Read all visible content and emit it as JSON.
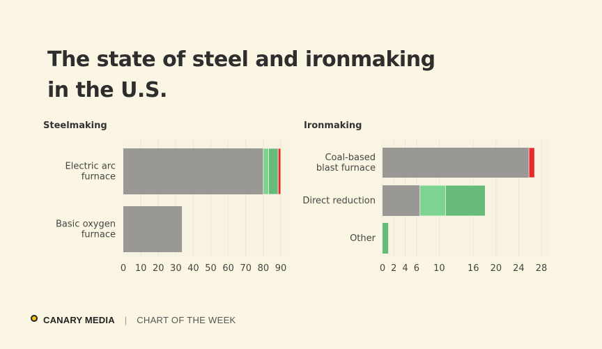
{
  "title_line1": "The state of steel and ironmaking",
  "title_line2": "in the U.S.",
  "footer": {
    "brand": "CANARY MEDIA",
    "separator": "|",
    "tagline": "CHART OF THE WEEK"
  },
  "colors": {
    "gray": "#9a9894",
    "light_green": "#7dd391",
    "green": "#66bb79",
    "red": "#e8282b",
    "background": "#fbf6e3",
    "plot_bg": "#f8f2e2",
    "brand_yellow": "#f2c413"
  },
  "chart_data": [
    {
      "type": "bar",
      "orientation": "horizontal",
      "stacked": true,
      "title": "Steelmaking",
      "categories": [
        "Electric arc\nfurnace",
        "Basic oxygen\nfurnace"
      ],
      "xlim": [
        0,
        90
      ],
      "xticks": [
        0,
        10,
        20,
        30,
        40,
        50,
        60,
        70,
        80,
        90
      ],
      "grid": true,
      "segments": [
        [
          {
            "value": 80,
            "color": "gray"
          },
          {
            "value": 3,
            "color": "light_green"
          },
          {
            "value": 5.5,
            "color": "green"
          },
          {
            "value": 1.5,
            "color": "red"
          }
        ],
        [
          {
            "value": 33.5,
            "color": "gray"
          }
        ]
      ]
    },
    {
      "type": "bar",
      "orientation": "horizontal",
      "stacked": true,
      "title": "Ironmaking",
      "categories": [
        "Coal-based\nblast furnace",
        "Direct reduction",
        "Other"
      ],
      "xlim": [
        0,
        28
      ],
      "xticks": [
        0,
        2,
        4,
        6,
        10,
        16,
        20,
        24,
        28
      ],
      "grid": true,
      "segments": [
        [
          {
            "value": 25.8,
            "color": "gray"
          },
          {
            "value": 1,
            "color": "red"
          }
        ],
        [
          {
            "value": 6.6,
            "color": "gray"
          },
          {
            "value": 4.5,
            "color": "light_green"
          },
          {
            "value": 7,
            "color": "green"
          }
        ],
        [
          {
            "value": 1,
            "color": "green"
          }
        ]
      ]
    }
  ]
}
